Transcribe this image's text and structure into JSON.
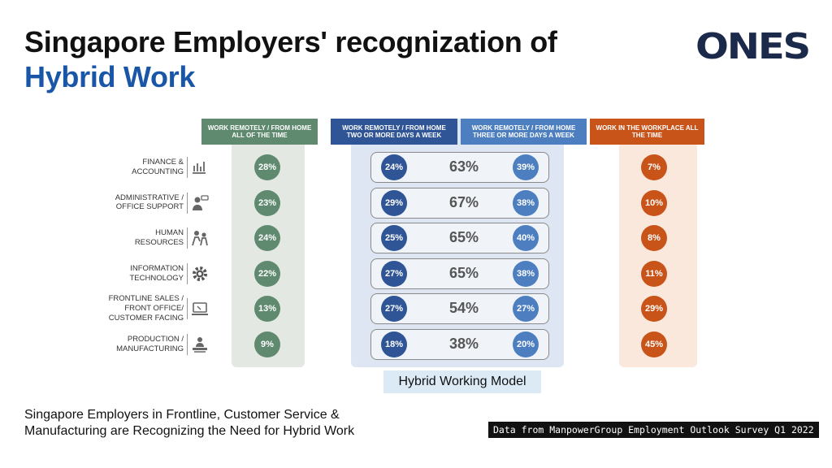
{
  "title": {
    "line1": "Singapore Employers' recognization of",
    "line2": "Hybrid Work"
  },
  "logo": {
    "text": "ONES"
  },
  "colors": {
    "green": "#5f8a70",
    "green_band": "#e3e8e2",
    "blue": "#2f5597",
    "blue_band": "#dde6f2",
    "lightblue": "#4d7fc0",
    "lightblue_band": "#dde9f6",
    "orange": "#c9541a",
    "orange_band": "#fbe8dc",
    "title_accent": "#1a56a8"
  },
  "chart_data": {
    "type": "table",
    "columns": [
      "WORK REMOTELY / FROM HOME ALL OF THE TIME",
      "WORK REMOTELY / FROM HOME TWO OR MORE DAYS A WEEK",
      "WORK REMOTELY / FROM HOME THREE OR MORE DAYS A WEEK",
      "WORK IN THE WORKPLACE ALL THE TIME"
    ],
    "rows": [
      {
        "label": [
          "FINANCE &",
          "ACCOUNTING"
        ],
        "icon": "chart-icon",
        "all_remote": "28%",
        "two_days": "24%",
        "hybrid": "63%",
        "three_days": "39%",
        "workplace": "7%"
      },
      {
        "label": [
          "ADMINISTRATIVE /",
          "OFFICE SUPPORT"
        ],
        "icon": "support-agent-icon",
        "all_remote": "23%",
        "two_days": "29%",
        "hybrid": "67%",
        "three_days": "38%",
        "workplace": "10%"
      },
      {
        "label": [
          "HUMAN",
          "RESOURCES"
        ],
        "icon": "people-icon",
        "all_remote": "24%",
        "two_days": "25%",
        "hybrid": "65%",
        "three_days": "40%",
        "workplace": "8%"
      },
      {
        "label": [
          "INFORMATION",
          "TECHNOLOGY"
        ],
        "icon": "gear-icon",
        "all_remote": "22%",
        "two_days": "27%",
        "hybrid": "65%",
        "three_days": "38%",
        "workplace": "11%"
      },
      {
        "label": [
          "FRONTLINE SALES /",
          "FRONT OFFICE/",
          "CUSTOMER FACING"
        ],
        "icon": "laptop-icon",
        "all_remote": "13%",
        "two_days": "27%",
        "hybrid": "54%",
        "three_days": "27%",
        "workplace": "29%"
      },
      {
        "label": [
          "PRODUCTION /",
          "MANUFACTURING"
        ],
        "icon": "worker-icon",
        "all_remote": "9%",
        "two_days": "18%",
        "hybrid": "38%",
        "three_days": "20%",
        "workplace": "45%"
      }
    ],
    "group_label": "Hybrid Working Model"
  },
  "caption": {
    "line1": "Singapore Employers in Frontline, Customer Service &",
    "line2": "Manufacturing are Recognizing the Need for Hybrid Work"
  },
  "source": "Data from ManpowerGroup Employment Outlook Survey Q1 2022"
}
